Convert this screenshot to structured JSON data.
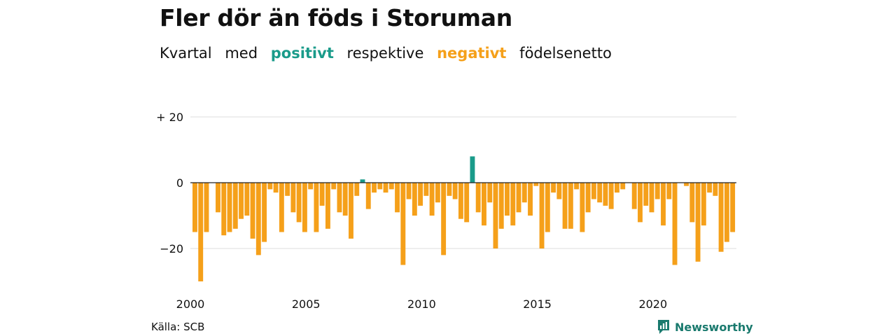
{
  "title": "Fler dör än föds i Storuman",
  "subtitle": {
    "part1": "Kvartal",
    "part2": "med",
    "positive": "positivt",
    "part3": "respektive",
    "negative": "negativt",
    "part4": "födelsenetto"
  },
  "colors": {
    "positive": "#1a9b8a",
    "negative": "#f5a01a",
    "grid": "#dddddd",
    "zero": "#222222",
    "brand": "#1a7a6e"
  },
  "source": "Källa: SCB",
  "brand": "Newsworthy",
  "chart_data": {
    "type": "bar",
    "title": "Fler dör än föds i Storuman",
    "xlabel": "",
    "ylabel": "",
    "ylim": [
      -31,
      22
    ],
    "yticks": [
      {
        "value": 20,
        "label": "+ 20"
      },
      {
        "value": 0,
        "label": "0"
      },
      {
        "value": -20,
        "label": "−20"
      }
    ],
    "xticks": [
      {
        "value": 2000,
        "label": "2000"
      },
      {
        "value": 2005,
        "label": "2005"
      },
      {
        "value": 2010,
        "label": "2010"
      },
      {
        "value": 2015,
        "label": "2015"
      },
      {
        "value": 2020,
        "label": "2020"
      }
    ],
    "x_start": 2000,
    "x_unit": "quarter",
    "grid": true,
    "values": [
      -15,
      -30,
      -15,
      0,
      -9,
      -16,
      -15,
      -14,
      -11,
      -10,
      -17,
      -22,
      -18,
      -2,
      -3,
      -15,
      -4,
      -9,
      -12,
      -15,
      -2,
      -15,
      -7,
      -14,
      -2,
      -9,
      -10,
      -17,
      -4,
      1,
      -8,
      -3,
      -2,
      -3,
      -2,
      -9,
      -25,
      -5,
      -10,
      -7,
      -4,
      -10,
      -6,
      -22,
      -4,
      -5,
      -11,
      -12,
      8,
      -9,
      -13,
      -6,
      -20,
      -14,
      -10,
      -13,
      -9,
      -6,
      -10,
      -1,
      -20,
      -15,
      -3,
      -5,
      -14,
      -14,
      -2,
      -15,
      -9,
      -5,
      -6,
      -7,
      -8,
      -3,
      -2,
      0,
      -8,
      -12,
      -7,
      -9,
      -5,
      -13,
      -5,
      -25,
      0,
      -1,
      -12,
      -24,
      -13,
      -3,
      -4,
      -21,
      -18,
      -15
    ]
  }
}
